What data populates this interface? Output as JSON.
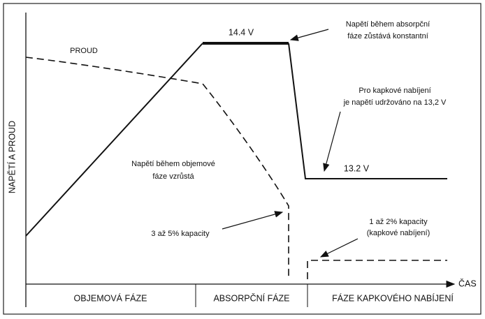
{
  "axes": {
    "y_label": "NAPĚTÍ A PROUD",
    "x_label": "ČAS"
  },
  "curves": {
    "current": "PROUD",
    "absorption_voltage": "14.4 V",
    "float_voltage": "13.2 V"
  },
  "annotations": {
    "absorption": [
      "Napětí během absorpční",
      "fáze zůstává konstantní"
    ],
    "float": [
      "Pro kapkové nabíjení",
      "je napětí udržováno na 13,2 V"
    ],
    "bulk": [
      "Napětí během objemové",
      "fáze vzrůstá"
    ],
    "bulk_capacity": "3 až 5% kapacity",
    "float_capacity": [
      "1 až 2% kapacity",
      "(kapkové nabíjení)"
    ]
  },
  "phases": [
    "OBJEMOVÁ FÁZE",
    "ABSORPČNÍ FÁZE",
    "FÁZE KAPKOVÉHO NABÍJENÍ"
  ]
}
